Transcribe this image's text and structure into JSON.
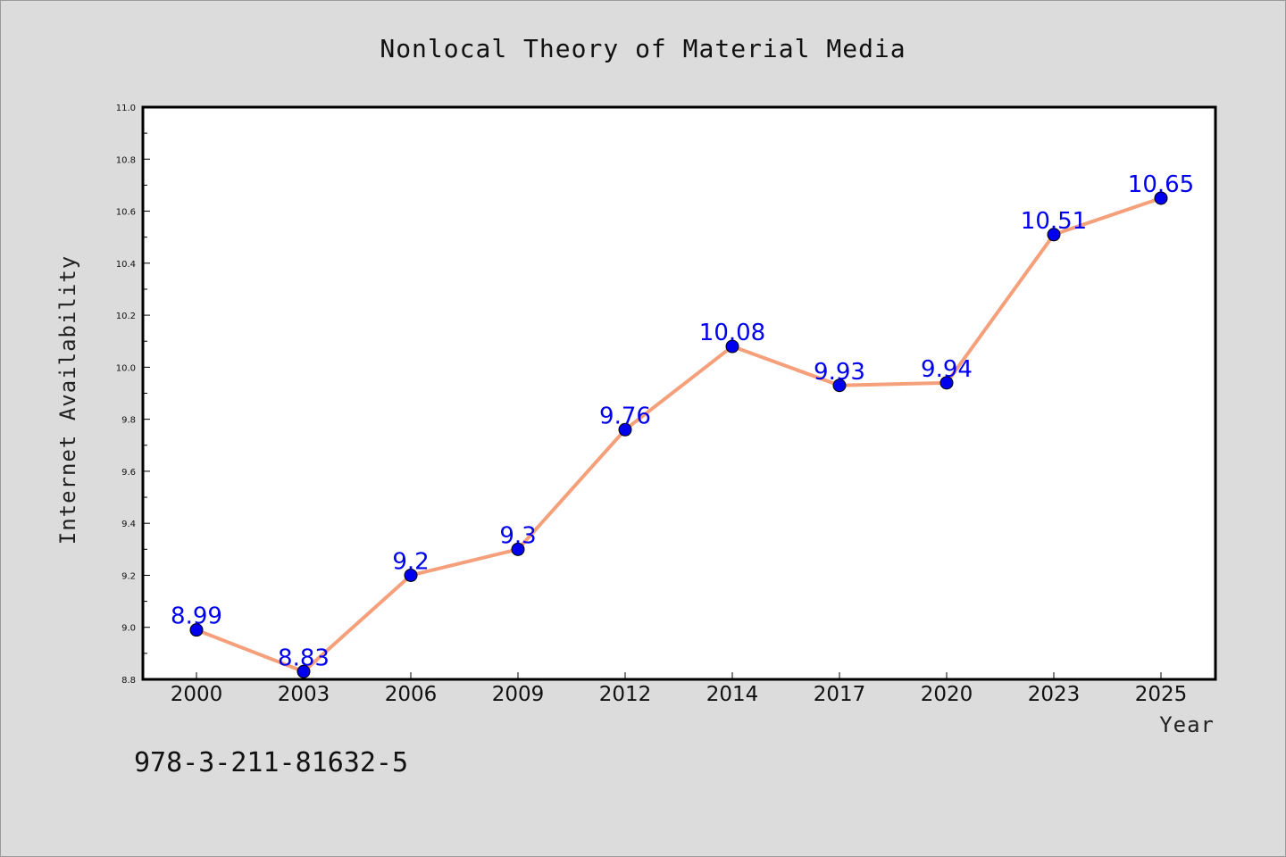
{
  "chart_data": {
    "type": "line",
    "title": "Nonlocal Theory of Material Media",
    "xlabel": "Year",
    "ylabel": "Internet Availability",
    "categories": [
      "2000",
      "2003",
      "2006",
      "2009",
      "2012",
      "2014",
      "2017",
      "2020",
      "2023",
      "2025"
    ],
    "series": [
      {
        "values": [
          8.99,
          8.83,
          9.2,
          9.3,
          9.76,
          10.08,
          9.93,
          9.94,
          10.51,
          10.65
        ],
        "labels": [
          "8.99",
          "8.83",
          "9.2",
          "9.3",
          "9.76",
          "10.08",
          "9.93",
          "9.94",
          "10.51",
          "10.65"
        ],
        "line_color": "#f5a07a",
        "marker_color": "#0000ee",
        "label_color": "#0000ee"
      }
    ],
    "ylim": [
      8.8,
      11.0
    ],
    "yticks": [
      "8.8",
      "9.0",
      "9.2",
      "9.4",
      "9.6",
      "9.8",
      "10.0",
      "10.2",
      "10.4",
      "10.6",
      "10.8",
      "11.0"
    ],
    "grid": false,
    "legend": "none"
  },
  "footer": {
    "isbn": "978-3-211-81632-5"
  },
  "colors": {
    "background": "#dcdcdc",
    "plot_background": "#ffffff",
    "axes": "#000000"
  }
}
